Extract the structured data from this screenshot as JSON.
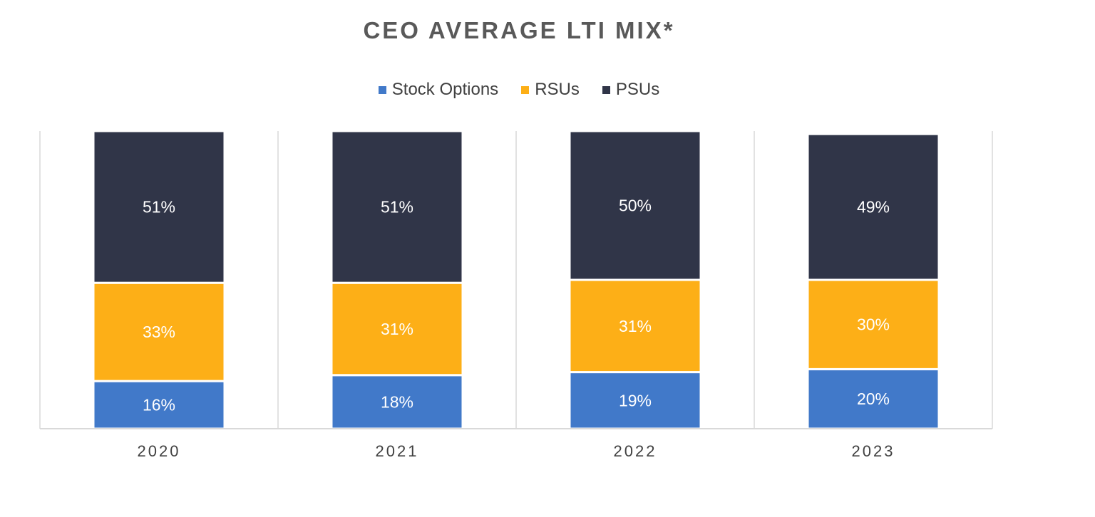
{
  "chart_data": {
    "type": "bar",
    "stacked": true,
    "title": "CEO AVERAGE LTI MIX*",
    "categories": [
      "2020",
      "2021",
      "2022",
      "2023"
    ],
    "series": [
      {
        "name": "Stock Options",
        "color": "#4179C9",
        "values": [
          16,
          18,
          19,
          20
        ],
        "labels": [
          "16%",
          "18%",
          "19%",
          "20%"
        ]
      },
      {
        "name": "RSUs",
        "color": "#FDAF17",
        "values": [
          33,
          31,
          31,
          30
        ],
        "labels": [
          "33%",
          "31%",
          "31%",
          "30%"
        ]
      },
      {
        "name": "PSUs",
        "color": "#303548",
        "values": [
          51,
          51,
          50,
          49
        ],
        "labels": [
          "51%",
          "51%",
          "50%",
          "49%"
        ]
      }
    ],
    "ylim": [
      0,
      100
    ],
    "grid": "vertical separators",
    "legend_position": "top"
  }
}
